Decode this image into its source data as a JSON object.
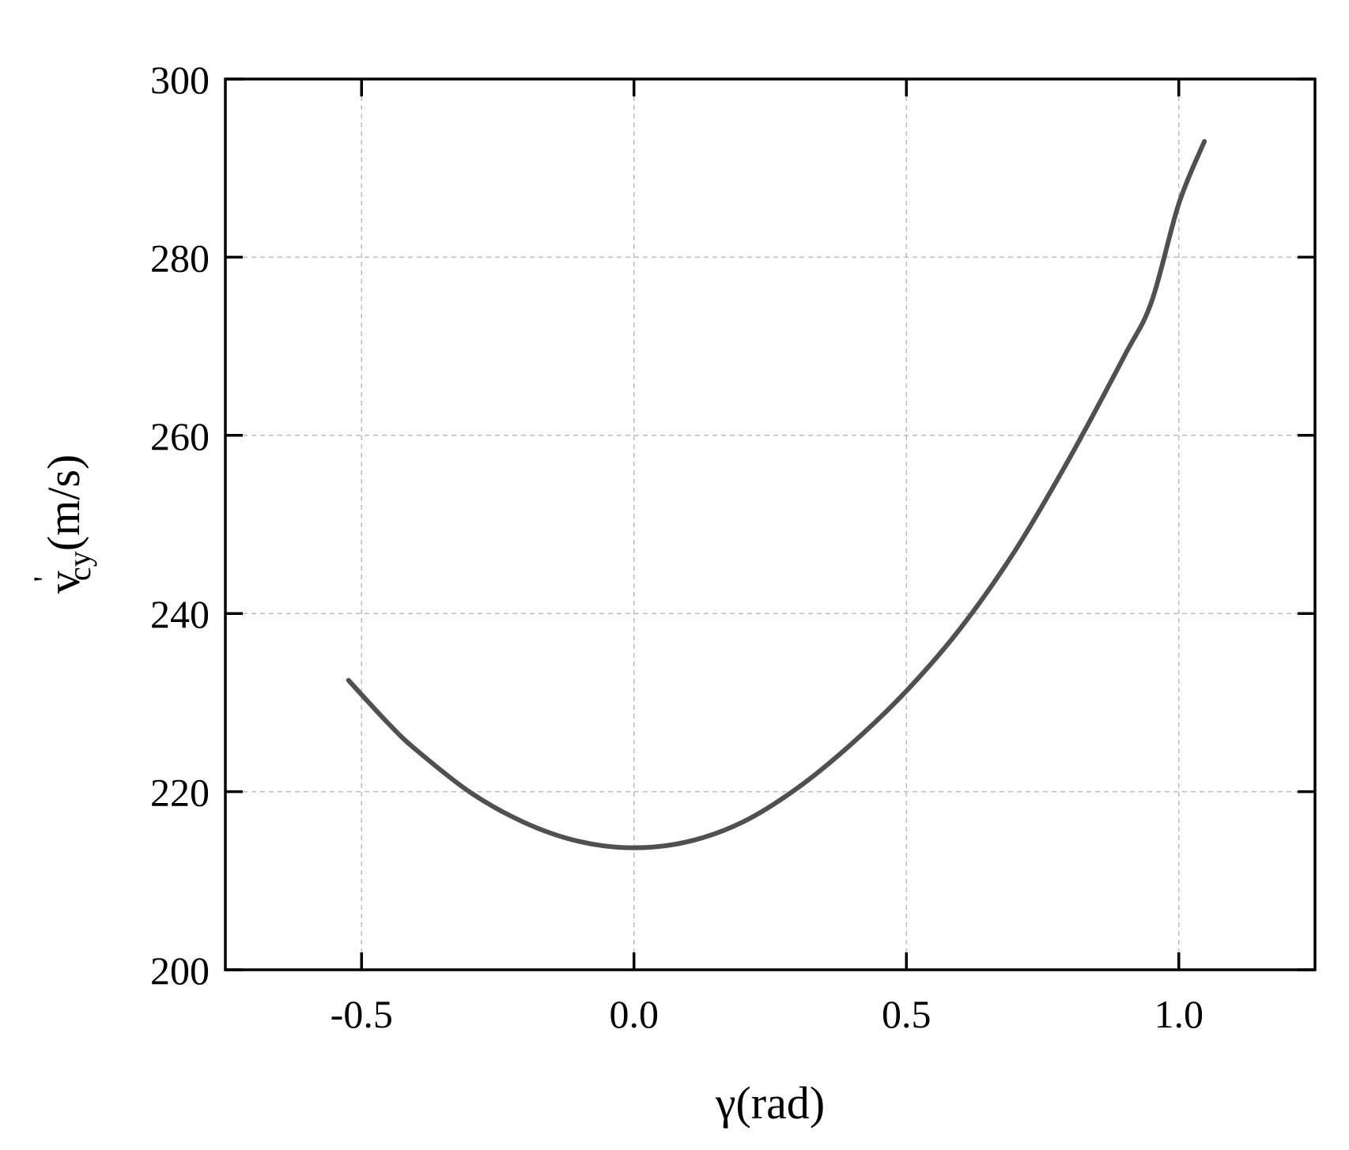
{
  "chart_data": {
    "type": "line",
    "title": "",
    "xlabel": "γ(rad)",
    "ylabel": {
      "base": "v",
      "prime": "'",
      "subscript": "cy",
      "unit": "(m/s)"
    },
    "xlim": [
      -0.75,
      1.25
    ],
    "ylim": [
      200,
      300
    ],
    "xticks": [
      -0.5,
      0.0,
      0.5,
      1.0
    ],
    "xtick_labels": [
      "-0.5",
      "0.0",
      "0.5",
      "1.0"
    ],
    "yticks": [
      200,
      220,
      240,
      260,
      280,
      300
    ],
    "ytick_labels": [
      "200",
      "220",
      "240",
      "260",
      "280",
      "300"
    ],
    "grid": true,
    "legend": "none",
    "series": [
      {
        "color": "#505050",
        "x": [
          -0.524,
          -0.45,
          -0.4,
          -0.3,
          -0.2,
          -0.1,
          0.0,
          0.1,
          0.2,
          0.3,
          0.4,
          0.5,
          0.6,
          0.7,
          0.8,
          0.9,
          0.95,
          1.0,
          1.047
        ],
        "y": [
          232.5,
          227.6,
          224.7,
          219.9,
          216.5,
          214.4,
          213.7,
          214.4,
          216.6,
          220.4,
          225.4,
          231.3,
          238.4,
          247.1,
          257.5,
          268.9,
          275.0,
          286.0,
          293.0
        ]
      }
    ]
  }
}
